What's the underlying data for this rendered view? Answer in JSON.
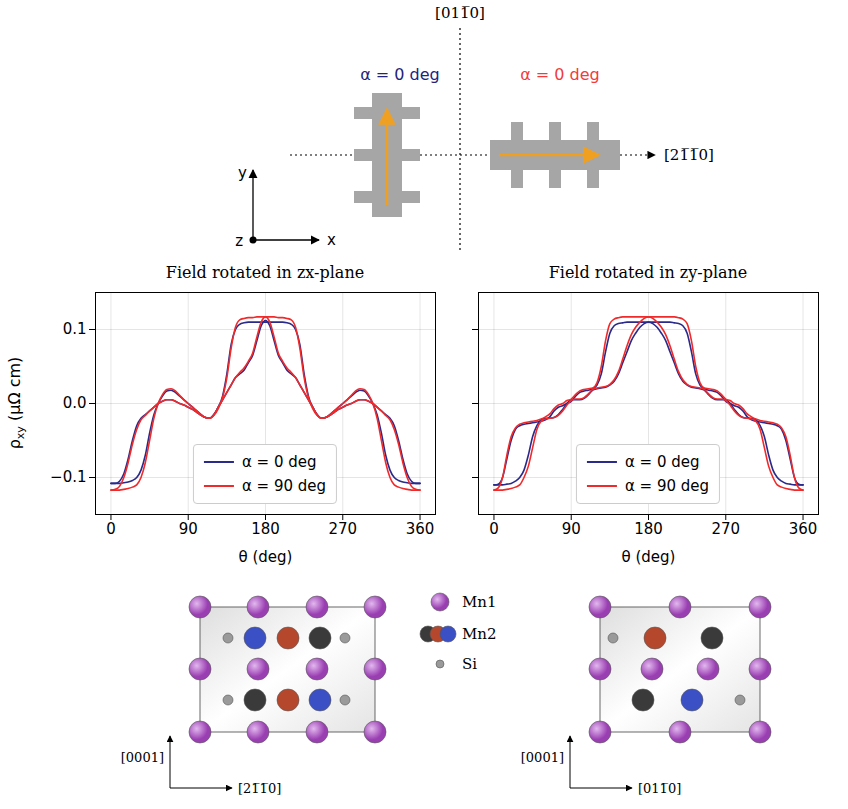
{
  "diagram": {
    "axis_vertical": "[011̅0]",
    "axis_horizontal": "[21̅1̅0]",
    "devices": [
      {
        "label": "α = 0 deg",
        "color": "#23237a"
      },
      {
        "label": "α = 0 deg",
        "color": "#f03c3c"
      }
    ],
    "frame_axes": [
      "x",
      "y",
      "z"
    ]
  },
  "chart_data": [
    {
      "type": "line",
      "title": "Field rotated in zx-plane",
      "x_label": "θ (deg)",
      "y_label": "ρxy (μΩ cm)",
      "x": [
        0,
        5,
        10,
        15,
        20,
        25,
        30,
        35,
        40,
        45,
        50,
        55,
        60,
        65,
        70,
        75,
        80,
        85,
        90,
        95,
        100,
        105,
        110,
        115,
        120,
        125,
        130,
        135,
        140,
        145,
        150,
        155,
        160,
        165,
        170,
        175,
        180,
        185,
        190,
        195,
        200,
        205,
        210,
        215,
        220,
        225,
        230,
        235,
        240,
        245,
        250,
        255,
        260,
        265,
        270,
        275,
        280,
        285,
        290,
        295,
        300,
        305,
        310,
        315,
        320,
        325,
        330,
        335,
        340,
        345,
        350,
        355,
        360
      ],
      "xlim": [
        -18,
        378
      ],
      "xticks": [
        0,
        90,
        180,
        270,
        360
      ],
      "ylim": [
        -0.15,
        0.15
      ],
      "yticks": [
        {
          "value": -0.1,
          "label": "−0.1"
        },
        {
          "value": 0,
          "label": "0.0"
        },
        0.1
      ],
      "grid": true,
      "legend": "lower center",
      "series": [
        {
          "name": "α = 0 deg",
          "color": "#2a2a8a",
          "values": [
            -0.108,
            -0.108,
            -0.105,
            -0.095,
            -0.075,
            -0.05,
            -0.03,
            -0.02,
            -0.015,
            -0.01,
            -0.005,
            0.0,
            0.003,
            0.005,
            0.005,
            0.003,
            0.0,
            -0.002,
            -0.005,
            -0.008,
            -0.012,
            -0.016,
            -0.019,
            -0.02,
            -0.015,
            -0.005,
            0.01,
            0.04,
            0.08,
            0.1,
            0.107,
            0.109,
            0.11,
            0.11,
            0.11,
            0.11,
            0.11,
            0.11,
            0.11,
            0.11,
            0.11,
            0.109,
            0.107,
            0.1,
            0.08,
            0.04,
            0.01,
            -0.005,
            -0.015,
            -0.02,
            -0.019,
            -0.016,
            -0.012,
            -0.008,
            -0.005,
            -0.002,
            0.0,
            0.003,
            0.005,
            0.005,
            0.003,
            0.0,
            -0.005,
            -0.01,
            -0.015,
            -0.02,
            -0.03,
            -0.05,
            -0.075,
            -0.095,
            -0.105,
            -0.108,
            -0.108
          ]
        },
        {
          "name": "α = 0 deg",
          "color": "#2a2a8a",
          "values": [
            -0.108,
            -0.108,
            -0.108,
            -0.107,
            -0.106,
            -0.104,
            -0.1,
            -0.09,
            -0.07,
            -0.04,
            -0.015,
            0.0,
            0.01,
            0.017,
            0.018,
            0.015,
            0.01,
            0.005,
            0.0,
            -0.005,
            -0.01,
            -0.015,
            -0.019,
            -0.02,
            -0.015,
            -0.005,
            0.005,
            0.015,
            0.025,
            0.035,
            0.04,
            0.045,
            0.055,
            0.065,
            0.085,
            0.105,
            0.112,
            0.105,
            0.085,
            0.065,
            0.055,
            0.045,
            0.04,
            0.035,
            0.025,
            0.015,
            0.005,
            -0.005,
            -0.015,
            -0.02,
            -0.019,
            -0.015,
            -0.01,
            -0.005,
            0.0,
            0.005,
            0.01,
            0.015,
            0.018,
            0.017,
            0.01,
            0.0,
            -0.015,
            -0.04,
            -0.07,
            -0.09,
            -0.1,
            -0.104,
            -0.106,
            -0.107,
            -0.108,
            -0.108,
            -0.108
          ]
        },
        {
          "name": "α = 90 deg",
          "color": "#f02a2a",
          "values": [
            -0.117,
            -0.116,
            -0.112,
            -0.1,
            -0.08,
            -0.055,
            -0.035,
            -0.022,
            -0.016,
            -0.01,
            -0.005,
            0.0,
            0.003,
            0.005,
            0.005,
            0.003,
            0.0,
            -0.002,
            -0.005,
            -0.008,
            -0.012,
            -0.016,
            -0.019,
            -0.02,
            -0.016,
            -0.007,
            0.008,
            0.035,
            0.075,
            0.103,
            0.113,
            0.115,
            0.116,
            0.116,
            0.117,
            0.117,
            0.117,
            0.117,
            0.117,
            0.116,
            0.116,
            0.115,
            0.113,
            0.103,
            0.075,
            0.035,
            0.008,
            -0.007,
            -0.016,
            -0.02,
            -0.019,
            -0.016,
            -0.012,
            -0.008,
            -0.005,
            -0.002,
            0.0,
            0.003,
            0.005,
            0.005,
            0.003,
            0.0,
            -0.005,
            -0.01,
            -0.016,
            -0.022,
            -0.035,
            -0.055,
            -0.08,
            -0.1,
            -0.112,
            -0.116,
            -0.117
          ]
        },
        {
          "name": "α = 90 deg",
          "color": "#f02a2a",
          "values": [
            -0.117,
            -0.117,
            -0.117,
            -0.116,
            -0.115,
            -0.113,
            -0.11,
            -0.1,
            -0.08,
            -0.05,
            -0.02,
            0.0,
            0.012,
            0.019,
            0.02,
            0.017,
            0.011,
            0.005,
            0.0,
            -0.005,
            -0.01,
            -0.015,
            -0.019,
            -0.02,
            -0.015,
            -0.005,
            0.005,
            0.015,
            0.025,
            0.035,
            0.042,
            0.048,
            0.057,
            0.068,
            0.09,
            0.11,
            0.117,
            0.11,
            0.09,
            0.068,
            0.057,
            0.048,
            0.042,
            0.035,
            0.025,
            0.015,
            0.005,
            -0.005,
            -0.015,
            -0.02,
            -0.019,
            -0.015,
            -0.01,
            -0.005,
            0.0,
            0.005,
            0.011,
            0.017,
            0.02,
            0.019,
            0.012,
            0.0,
            -0.02,
            -0.05,
            -0.08,
            -0.1,
            -0.11,
            -0.113,
            -0.115,
            -0.116,
            -0.117,
            -0.117,
            -0.117
          ]
        }
      ]
    },
    {
      "type": "line",
      "title": "Field rotated in zy-plane",
      "x_label": "θ (deg)",
      "x": [
        0,
        5,
        10,
        15,
        20,
        25,
        30,
        35,
        40,
        45,
        50,
        55,
        60,
        65,
        70,
        75,
        80,
        85,
        90,
        95,
        100,
        105,
        110,
        115,
        120,
        125,
        130,
        135,
        140,
        145,
        150,
        155,
        160,
        165,
        170,
        175,
        180,
        185,
        190,
        195,
        200,
        205,
        210,
        215,
        220,
        225,
        230,
        235,
        240,
        245,
        250,
        255,
        260,
        265,
        270,
        275,
        280,
        285,
        290,
        295,
        300,
        305,
        310,
        315,
        320,
        325,
        330,
        335,
        340,
        345,
        350,
        355,
        360
      ],
      "xlim": [
        -18,
        378
      ],
      "xticks": [
        0,
        90,
        180,
        270,
        360
      ],
      "ylim": [
        -0.15,
        0.15
      ],
      "yticks": [
        {
          "value": -0.1,
          "label": "−0.1"
        },
        {
          "value": 0,
          "label": "0.0"
        },
        0.1
      ],
      "tick_labels": "x",
      "grid": true,
      "legend": "lower center",
      "series": [
        {
          "name": "α = 0 deg",
          "color": "#2a2a8a",
          "values": [
            -0.11,
            -0.109,
            -0.1,
            -0.075,
            -0.05,
            -0.035,
            -0.03,
            -0.028,
            -0.027,
            -0.026,
            -0.025,
            -0.024,
            -0.022,
            -0.018,
            -0.01,
            -0.005,
            -0.003,
            0.0,
            0.003,
            0.01,
            0.015,
            0.017,
            0.018,
            0.02,
            0.025,
            0.04,
            0.07,
            0.095,
            0.105,
            0.108,
            0.109,
            0.11,
            0.11,
            0.11,
            0.11,
            0.11,
            0.11,
            0.11,
            0.11,
            0.11,
            0.11,
            0.11,
            0.109,
            0.108,
            0.105,
            0.095,
            0.07,
            0.04,
            0.025,
            0.02,
            0.018,
            0.017,
            0.015,
            0.01,
            0.003,
            0.0,
            -0.003,
            -0.005,
            -0.01,
            -0.018,
            -0.022,
            -0.024,
            -0.025,
            -0.026,
            -0.027,
            -0.028,
            -0.03,
            -0.035,
            -0.05,
            -0.075,
            -0.1,
            -0.109,
            -0.11
          ]
        },
        {
          "name": "α = 0 deg",
          "color": "#2a2a8a",
          "values": [
            -0.11,
            -0.11,
            -0.11,
            -0.109,
            -0.108,
            -0.105,
            -0.1,
            -0.09,
            -0.07,
            -0.045,
            -0.03,
            -0.022,
            -0.02,
            -0.02,
            -0.019,
            -0.015,
            -0.008,
            0.0,
            0.005,
            0.005,
            0.005,
            0.007,
            0.012,
            0.018,
            0.02,
            0.021,
            0.022,
            0.025,
            0.03,
            0.04,
            0.055,
            0.07,
            0.085,
            0.095,
            0.103,
            0.108,
            0.11,
            0.108,
            0.103,
            0.095,
            0.085,
            0.07,
            0.055,
            0.04,
            0.03,
            0.025,
            0.022,
            0.021,
            0.02,
            0.018,
            0.012,
            0.007,
            0.005,
            0.005,
            0.005,
            0.0,
            -0.008,
            -0.015,
            -0.019,
            -0.02,
            -0.02,
            -0.022,
            -0.03,
            -0.045,
            -0.07,
            -0.09,
            -0.1,
            -0.105,
            -0.108,
            -0.109,
            -0.11,
            -0.11,
            -0.11
          ]
        },
        {
          "name": "α = 90 deg",
          "color": "#f02a2a",
          "values": [
            -0.117,
            -0.114,
            -0.1,
            -0.07,
            -0.045,
            -0.033,
            -0.028,
            -0.026,
            -0.025,
            -0.024,
            -0.023,
            -0.021,
            -0.018,
            -0.014,
            -0.007,
            -0.002,
            0.0,
            0.004,
            0.006,
            0.012,
            0.017,
            0.019,
            0.02,
            0.021,
            0.028,
            0.05,
            0.085,
            0.108,
            0.114,
            0.116,
            0.117,
            0.117,
            0.117,
            0.117,
            0.117,
            0.117,
            0.117,
            0.117,
            0.117,
            0.117,
            0.117,
            0.117,
            0.117,
            0.116,
            0.114,
            0.108,
            0.085,
            0.05,
            0.028,
            0.021,
            0.02,
            0.019,
            0.017,
            0.012,
            0.006,
            0.004,
            0.0,
            -0.002,
            -0.007,
            -0.014,
            -0.018,
            -0.021,
            -0.023,
            -0.024,
            -0.025,
            -0.026,
            -0.028,
            -0.033,
            -0.045,
            -0.07,
            -0.1,
            -0.114,
            -0.117
          ]
        },
        {
          "name": "α = 90 deg",
          "color": "#f02a2a",
          "values": [
            -0.117,
            -0.117,
            -0.117,
            -0.116,
            -0.115,
            -0.113,
            -0.11,
            -0.1,
            -0.085,
            -0.06,
            -0.035,
            -0.024,
            -0.021,
            -0.02,
            -0.019,
            -0.016,
            -0.01,
            -0.002,
            0.004,
            0.006,
            0.006,
            0.008,
            0.013,
            0.019,
            0.021,
            0.022,
            0.023,
            0.026,
            0.032,
            0.043,
            0.06,
            0.078,
            0.093,
            0.103,
            0.11,
            0.115,
            0.117,
            0.115,
            0.11,
            0.103,
            0.093,
            0.078,
            0.06,
            0.043,
            0.032,
            0.026,
            0.023,
            0.022,
            0.021,
            0.019,
            0.013,
            0.008,
            0.006,
            0.006,
            0.004,
            -0.002,
            -0.01,
            -0.016,
            -0.019,
            -0.02,
            -0.021,
            -0.024,
            -0.035,
            -0.06,
            -0.085,
            -0.1,
            -0.11,
            -0.113,
            -0.115,
            -0.116,
            -0.117,
            -0.117,
            -0.117
          ]
        }
      ]
    }
  ],
  "structure": {
    "legend": [
      {
        "label": "Mn1"
      },
      {
        "label": "Mn2"
      },
      {
        "label": "Si"
      }
    ],
    "panels": [
      {
        "vertical": "[0001]",
        "horizontal": "[21̅1̅0]"
      },
      {
        "vertical": "[0001]",
        "horizontal": "[011̅0]"
      }
    ]
  }
}
